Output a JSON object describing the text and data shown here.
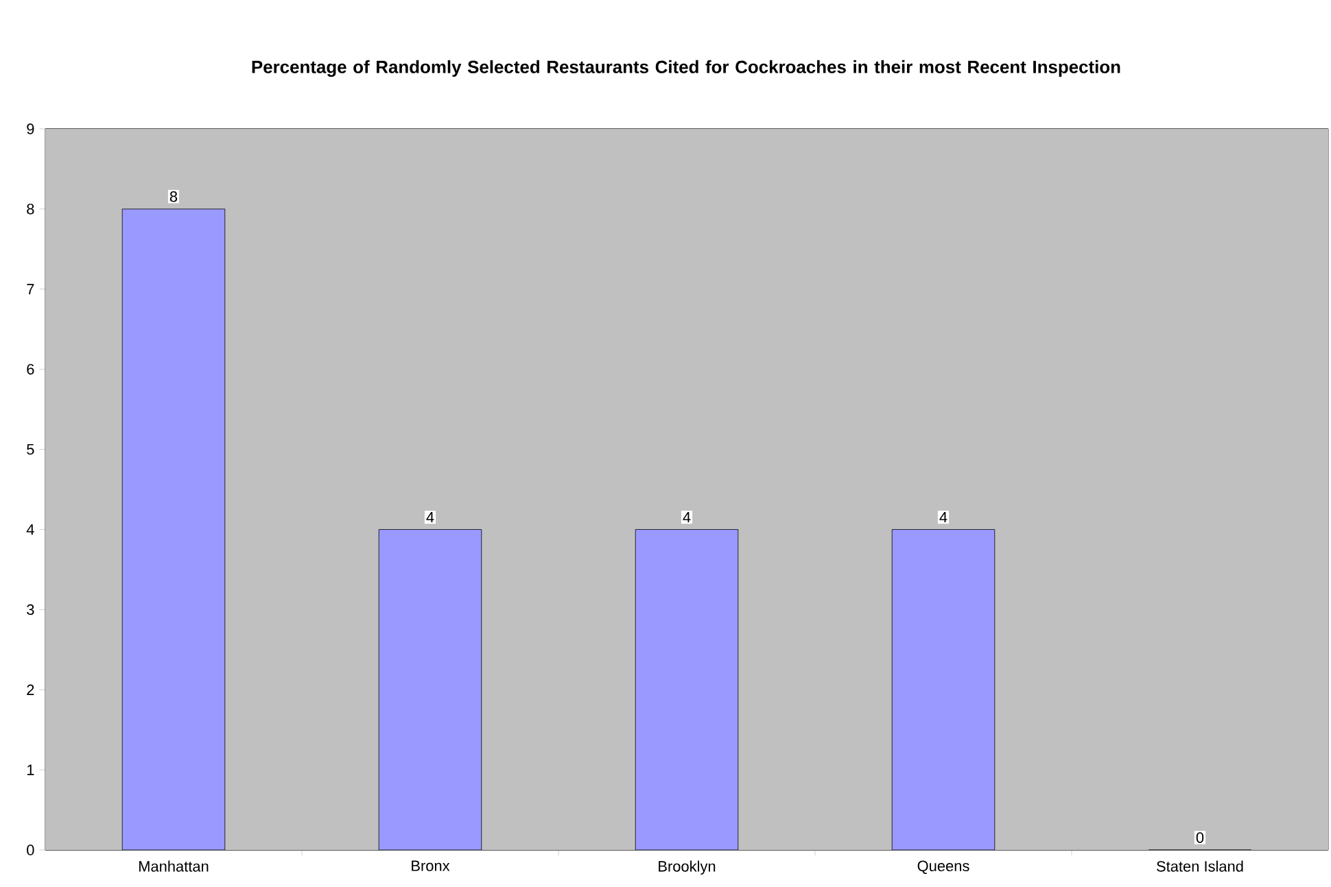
{
  "chart_data": {
    "type": "bar",
    "title": "Percentage of Randomly Selected Restaurants Cited for Cockroaches in their most Recent Inspection",
    "categories": [
      "Manhattan",
      "Bronx",
      "Brooklyn",
      "Queens",
      "Staten Island"
    ],
    "values": [
      8,
      4,
      4,
      4,
      0
    ],
    "color": "#9999ff",
    "ylim": [
      0,
      9
    ],
    "yticks": [
      0,
      1,
      2,
      3,
      4,
      5,
      6,
      7,
      8,
      9
    ],
    "grid": "y",
    "data_labels": true
  }
}
